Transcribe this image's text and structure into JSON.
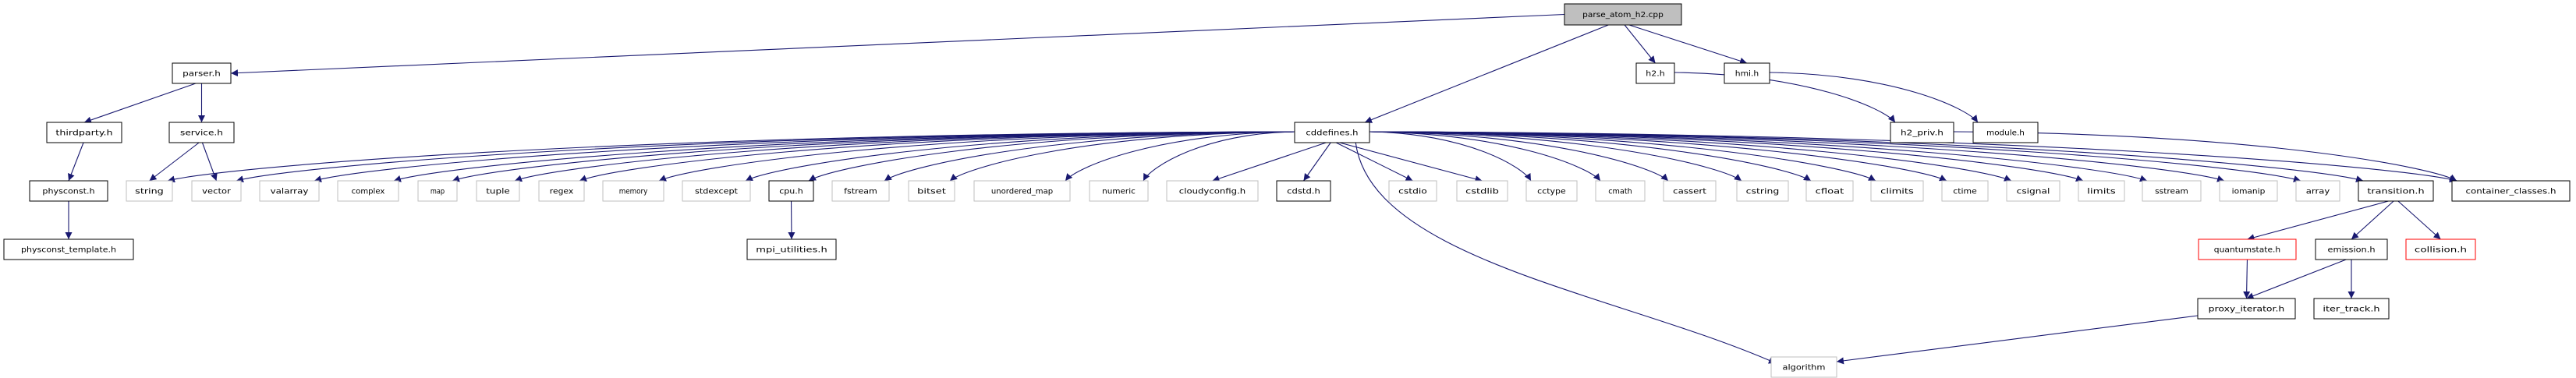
{
  "graph": {
    "colors": {
      "edge": "#191970",
      "root_fill": "#bfbfbf",
      "internal_border": "#000000",
      "external_border": "#bfbfbf",
      "truncated_border": "#ff0000"
    },
    "nodes": [
      {
        "id": "parse_atom_h2",
        "label": "parse_atom_h2.cpp",
        "kind": "root"
      },
      {
        "id": "parser",
        "label": "parser.h",
        "kind": "internal"
      },
      {
        "id": "h2",
        "label": "h2.h",
        "kind": "internal"
      },
      {
        "id": "hmi",
        "label": "hmi.h",
        "kind": "internal"
      },
      {
        "id": "thirdparty",
        "label": "thirdparty.h",
        "kind": "internal"
      },
      {
        "id": "service",
        "label": "service.h",
        "kind": "internal"
      },
      {
        "id": "cddefines",
        "label": "cddefines.h",
        "kind": "internal"
      },
      {
        "id": "h2_priv",
        "label": "h2_priv.h",
        "kind": "internal"
      },
      {
        "id": "module",
        "label": "module.h",
        "kind": "internal"
      },
      {
        "id": "physconst",
        "label": "physconst.h",
        "kind": "internal"
      },
      {
        "id": "physconst_template",
        "label": "physconst_template.h",
        "kind": "internal"
      },
      {
        "id": "string",
        "label": "string",
        "kind": "external"
      },
      {
        "id": "vector",
        "label": "vector",
        "kind": "external"
      },
      {
        "id": "valarray",
        "label": "valarray",
        "kind": "external"
      },
      {
        "id": "complex",
        "label": "complex",
        "kind": "external"
      },
      {
        "id": "map",
        "label": "map",
        "kind": "external"
      },
      {
        "id": "tuple",
        "label": "tuple",
        "kind": "external"
      },
      {
        "id": "regex",
        "label": "regex",
        "kind": "external"
      },
      {
        "id": "memory",
        "label": "memory",
        "kind": "external"
      },
      {
        "id": "stdexcept",
        "label": "stdexcept",
        "kind": "external"
      },
      {
        "id": "cpu",
        "label": "cpu.h",
        "kind": "internal"
      },
      {
        "id": "fstream",
        "label": "fstream",
        "kind": "external"
      },
      {
        "id": "bitset",
        "label": "bitset",
        "kind": "external"
      },
      {
        "id": "unordered_map",
        "label": "unordered_map",
        "kind": "external"
      },
      {
        "id": "numeric",
        "label": "numeric",
        "kind": "external"
      },
      {
        "id": "cloudyconfig",
        "label": "cloudyconfig.h",
        "kind": "external"
      },
      {
        "id": "cdstd",
        "label": "cdstd.h",
        "kind": "internal"
      },
      {
        "id": "cstdio",
        "label": "cstdio",
        "kind": "external"
      },
      {
        "id": "cstdlib",
        "label": "cstdlib",
        "kind": "external"
      },
      {
        "id": "cctype",
        "label": "cctype",
        "kind": "external"
      },
      {
        "id": "cmath",
        "label": "cmath",
        "kind": "external"
      },
      {
        "id": "cassert",
        "label": "cassert",
        "kind": "external"
      },
      {
        "id": "cstring",
        "label": "cstring",
        "kind": "external"
      },
      {
        "id": "cfloat",
        "label": "cfloat",
        "kind": "external"
      },
      {
        "id": "climits",
        "label": "climits",
        "kind": "external"
      },
      {
        "id": "ctime",
        "label": "ctime",
        "kind": "external"
      },
      {
        "id": "csignal",
        "label": "csignal",
        "kind": "external"
      },
      {
        "id": "limits",
        "label": "limits",
        "kind": "external"
      },
      {
        "id": "sstream",
        "label": "sstream",
        "kind": "external"
      },
      {
        "id": "iomanip",
        "label": "iomanip",
        "kind": "external"
      },
      {
        "id": "array",
        "label": "array",
        "kind": "external"
      },
      {
        "id": "transition",
        "label": "transition.h",
        "kind": "internal"
      },
      {
        "id": "container_classes",
        "label": "container_classes.h",
        "kind": "internal"
      },
      {
        "id": "mpi_utilities",
        "label": "mpi_utilities.h",
        "kind": "internal"
      },
      {
        "id": "quantumstate",
        "label": "quantumstate.h",
        "kind": "truncated"
      },
      {
        "id": "emission",
        "label": "emission.h",
        "kind": "internal"
      },
      {
        "id": "collision",
        "label": "collision.h",
        "kind": "truncated"
      },
      {
        "id": "proxy_iterator",
        "label": "proxy_iterator.h",
        "kind": "internal"
      },
      {
        "id": "iter_track",
        "label": "iter_track.h",
        "kind": "internal"
      },
      {
        "id": "algorithm",
        "label": "algorithm",
        "kind": "external"
      }
    ],
    "edges": [
      [
        "parse_atom_h2",
        "parser"
      ],
      [
        "parse_atom_h2",
        "cddefines"
      ],
      [
        "parse_atom_h2",
        "h2"
      ],
      [
        "parse_atom_h2",
        "hmi"
      ],
      [
        "parser",
        "thirdparty"
      ],
      [
        "parser",
        "service"
      ],
      [
        "thirdparty",
        "physconst"
      ],
      [
        "physconst",
        "physconst_template"
      ],
      [
        "service",
        "string"
      ],
      [
        "service",
        "vector"
      ],
      [
        "h2",
        "h2_priv"
      ],
      [
        "hmi",
        "module"
      ],
      [
        "h2_priv",
        "container_classes"
      ],
      [
        "cddefines",
        "string"
      ],
      [
        "cddefines",
        "vector"
      ],
      [
        "cddefines",
        "valarray"
      ],
      [
        "cddefines",
        "complex"
      ],
      [
        "cddefines",
        "map"
      ],
      [
        "cddefines",
        "tuple"
      ],
      [
        "cddefines",
        "regex"
      ],
      [
        "cddefines",
        "memory"
      ],
      [
        "cddefines",
        "stdexcept"
      ],
      [
        "cddefines",
        "cpu"
      ],
      [
        "cddefines",
        "fstream"
      ],
      [
        "cddefines",
        "bitset"
      ],
      [
        "cddefines",
        "unordered_map"
      ],
      [
        "cddefines",
        "numeric"
      ],
      [
        "cddefines",
        "cloudyconfig"
      ],
      [
        "cddefines",
        "cdstd"
      ],
      [
        "cddefines",
        "cstdio"
      ],
      [
        "cddefines",
        "cstdlib"
      ],
      [
        "cddefines",
        "cctype"
      ],
      [
        "cddefines",
        "cmath"
      ],
      [
        "cddefines",
        "cassert"
      ],
      [
        "cddefines",
        "cstring"
      ],
      [
        "cddefines",
        "cfloat"
      ],
      [
        "cddefines",
        "climits"
      ],
      [
        "cddefines",
        "ctime"
      ],
      [
        "cddefines",
        "csignal"
      ],
      [
        "cddefines",
        "limits"
      ],
      [
        "cddefines",
        "sstream"
      ],
      [
        "cddefines",
        "iomanip"
      ],
      [
        "cddefines",
        "array"
      ],
      [
        "cddefines",
        "transition"
      ],
      [
        "cddefines",
        "container_classes"
      ],
      [
        "cddefines",
        "algorithm"
      ],
      [
        "cpu",
        "mpi_utilities"
      ],
      [
        "transition",
        "quantumstate"
      ],
      [
        "transition",
        "emission"
      ],
      [
        "transition",
        "collision"
      ],
      [
        "quantumstate",
        "proxy_iterator"
      ],
      [
        "emission",
        "proxy_iterator"
      ],
      [
        "emission",
        "iter_track"
      ],
      [
        "proxy_iterator",
        "algorithm"
      ]
    ]
  }
}
